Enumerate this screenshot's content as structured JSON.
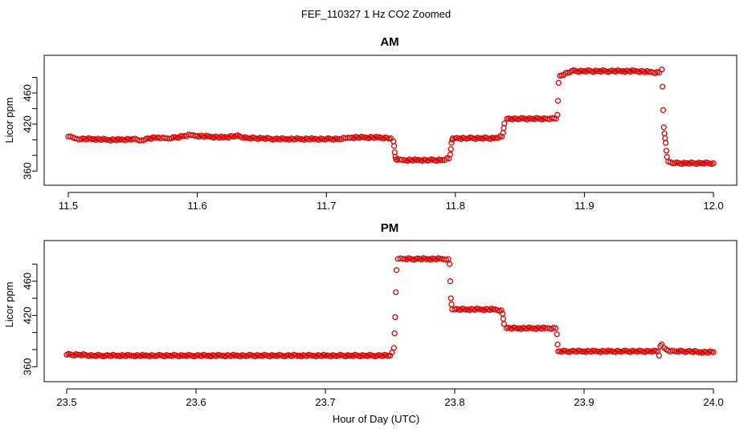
{
  "figure": {
    "title": "FEF_110327  1 Hz CO2 Zoomed",
    "xlabel": "Hour of Day (UTC)"
  },
  "colors": {
    "points": "#e00000",
    "axes": "#000000"
  },
  "chart_data": [
    {
      "type": "scatter",
      "title": "AM",
      "xlabel": "",
      "ylabel": "Licor ppm",
      "xlim": [
        11.5,
        12.0
      ],
      "ylim": [
        350,
        500
      ],
      "xticks": [
        11.5,
        11.6,
        11.7,
        11.8,
        11.9,
        12.0
      ],
      "xtick_labels": [
        "11.5",
        "11.6",
        "11.7",
        "11.8",
        "11.9",
        "12.0"
      ],
      "yticks": [
        360,
        380,
        400,
        420,
        440,
        460,
        480
      ],
      "ytick_labels": [
        "360",
        "",
        "",
        "420",
        "",
        "460",
        ""
      ],
      "grid": false,
      "marker": "open-circle",
      "series": [
        {
          "x": [
            11.5,
            11.505,
            11.51,
            11.52,
            11.53,
            11.54,
            11.55,
            11.555,
            11.56,
            11.57,
            11.575,
            11.58,
            11.59,
            11.595,
            11.6,
            11.61,
            11.62,
            11.63,
            11.64,
            11.65,
            11.66,
            11.67,
            11.68,
            11.69,
            11.7,
            11.71,
            11.715,
            11.72,
            11.73,
            11.74,
            11.75,
            11.752,
            11.7525,
            11.753,
            11.7535,
            11.754,
            11.755,
            11.76,
            11.77,
            11.78,
            11.79,
            11.795,
            11.796,
            11.7965,
            11.797,
            11.7975,
            11.798,
            11.8,
            11.81,
            11.82,
            11.83,
            11.836,
            11.837,
            11.8375,
            11.838,
            11.84,
            11.85,
            11.86,
            11.87,
            11.878,
            11.879,
            11.8795,
            11.88,
            11.881,
            11.89,
            11.9,
            11.91,
            11.92,
            11.93,
            11.94,
            11.95,
            11.958,
            11.96,
            11.9605,
            11.961,
            11.9615,
            11.962,
            11.9625,
            11.963,
            11.9635,
            11.964,
            11.965,
            11.97,
            11.98,
            11.99,
            12.0
          ],
          "y": [
            404,
            402,
            401,
            401,
            400,
            400,
            401,
            399,
            401,
            403,
            402,
            402,
            405,
            406,
            405,
            404,
            403,
            405,
            402,
            402,
            401,
            401,
            401,
            401,
            401,
            401,
            402,
            403,
            403,
            403,
            402,
            398,
            392,
            384,
            378,
            375,
            374,
            374,
            374,
            374,
            374,
            376,
            381,
            388,
            396,
            400,
            402,
            402,
            402,
            402,
            402,
            404,
            409,
            415,
            421,
            427,
            427,
            427,
            427,
            427,
            432,
            450,
            473,
            482,
            488,
            488,
            488,
            488,
            488,
            488,
            487,
            486,
            490,
            468,
            438,
            416,
            408,
            402,
            396,
            386,
            378,
            372,
            370,
            370,
            370,
            370
          ]
        }
      ]
    },
    {
      "type": "scatter",
      "title": "PM",
      "xlabel": "Hour of Day (UTC)",
      "ylabel": "Licor ppm",
      "xlim": [
        23.5,
        24.0
      ],
      "ylim": [
        350,
        500
      ],
      "xticks": [
        23.5,
        23.6,
        23.7,
        23.8,
        23.9,
        24.0
      ],
      "xtick_labels": [
        "23.5",
        "23.6",
        "23.7",
        "23.8",
        "23.9",
        "24.0"
      ],
      "yticks": [
        360,
        380,
        400,
        420,
        440,
        460,
        480
      ],
      "ytick_labels": [
        "360",
        "",
        "",
        "420",
        "",
        "460",
        ""
      ],
      "grid": false,
      "marker": "open-circle",
      "series": [
        {
          "x": [
            23.5,
            23.51,
            23.52,
            23.53,
            23.54,
            23.55,
            23.56,
            23.57,
            23.58,
            23.59,
            23.6,
            23.61,
            23.62,
            23.63,
            23.64,
            23.65,
            23.66,
            23.67,
            23.68,
            23.69,
            23.7,
            23.71,
            23.72,
            23.73,
            23.74,
            23.75,
            23.753,
            23.7535,
            23.754,
            23.7545,
            23.755,
            23.756,
            23.76,
            23.77,
            23.78,
            23.79,
            23.795,
            23.796,
            23.7965,
            23.797,
            23.7975,
            23.798,
            23.8,
            23.81,
            23.82,
            23.83,
            23.836,
            23.837,
            23.8375,
            23.838,
            23.84,
            23.85,
            23.86,
            23.87,
            23.878,
            23.879,
            23.8795,
            23.88,
            23.89,
            23.9,
            23.91,
            23.92,
            23.93,
            23.94,
            23.95,
            23.957,
            23.958,
            23.959,
            23.96,
            23.962,
            23.965,
            23.97,
            23.98,
            23.99,
            24.0
          ],
          "y": [
            374,
            374,
            373,
            373,
            373,
            373,
            373,
            373,
            373,
            373,
            373,
            373,
            373,
            373,
            373,
            373,
            373,
            373,
            373,
            373,
            373,
            373,
            373,
            373,
            373,
            373,
            382,
            399,
            418,
            447,
            473,
            486,
            486,
            486,
            486,
            486,
            486,
            480,
            460,
            440,
            433,
            427,
            427,
            427,
            427,
            427,
            426,
            422,
            416,
            410,
            405,
            405,
            405,
            405,
            405,
            398,
            386,
            378,
            378,
            378,
            378,
            378,
            378,
            378,
            378,
            378,
            373,
            384,
            386,
            382,
            379,
            378,
            378,
            377,
            377
          ]
        }
      ]
    }
  ]
}
